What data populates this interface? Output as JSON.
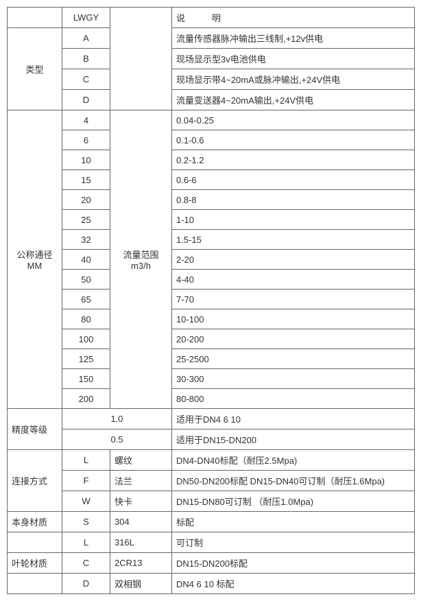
{
  "header": {
    "code": "LWGY",
    "desc_label": "说　　　明"
  },
  "type": {
    "label": "类型",
    "rows": [
      {
        "code": "A",
        "desc": "流量传感器脉冲输出三线制,+12v供电"
      },
      {
        "code": "B",
        "desc": "现场显示型3v电池供电"
      },
      {
        "code": "C",
        "desc": "现场显示带4~20mA或脉冲输出,+24V供电"
      },
      {
        "code": "D",
        "desc": "流量变送器4~20mA输出,+24V供电"
      }
    ]
  },
  "dn": {
    "label_line1": "公称通径",
    "label_line2": "MM",
    "range_label_line1": "流量范围",
    "range_label_line2": "m3/h",
    "rows": [
      {
        "size": "4",
        "range": "0.04-0.25"
      },
      {
        "size": "6",
        "range": "0.1-0.6"
      },
      {
        "size": "10",
        "range": "0.2-1.2"
      },
      {
        "size": "15",
        "range": "0.6-6"
      },
      {
        "size": "20",
        "range": "0.8-8"
      },
      {
        "size": "25",
        "range": "1-10"
      },
      {
        "size": "32",
        "range": "1.5-15"
      },
      {
        "size": "40",
        "range": "2-20"
      },
      {
        "size": "50",
        "range": "4-40"
      },
      {
        "size": "65",
        "range": "7-70"
      },
      {
        "size": "80",
        "range": "10-100"
      },
      {
        "size": "100",
        "range": "20-200"
      },
      {
        "size": "125",
        "range": "25-2500"
      },
      {
        "size": "150",
        "range": "30-300"
      },
      {
        "size": "200",
        "range": "80-800"
      }
    ]
  },
  "accuracy": {
    "label": "精度等级",
    "rows": [
      {
        "val": "1.0",
        "desc": "适用于DN4  6  10"
      },
      {
        "val": "0.5",
        "desc": "适用于DN15-DN200"
      }
    ]
  },
  "conn": {
    "label": "连接方式",
    "rows": [
      {
        "code": "L",
        "name": "螺纹",
        "desc": "DN4-DN40标配（耐压2.5Mpa)"
      },
      {
        "code": "F",
        "name": "法兰",
        "desc": "DN50-DN200标配 DN15-DN40可订制（耐压1.6Mpa)"
      },
      {
        "code": "W",
        "name": "快卡",
        "desc": "DN15-DN80可订制 （耐压1.0Mpa)"
      }
    ]
  },
  "body_mat": {
    "label": "本身材质",
    "rows": [
      {
        "code": "S",
        "name": "304",
        "desc": "标配"
      },
      {
        "code": "L",
        "name": "316L",
        "desc": "可订制"
      }
    ]
  },
  "impeller": {
    "label": "叶轮材质",
    "rows": [
      {
        "code": "C",
        "name": "2CR13",
        "desc": "DN15-DN200标配"
      },
      {
        "code": "D",
        "name": "双相钢",
        "desc": "DN4 6 10 标配"
      }
    ]
  }
}
